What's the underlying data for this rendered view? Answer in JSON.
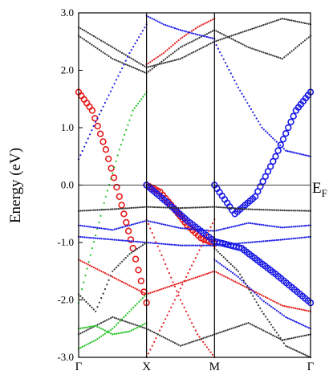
{
  "chart_data": {
    "type": "scatter",
    "ylabel": "Energy (eV)",
    "ylim": [
      -3.0,
      3.0
    ],
    "yticks": [
      "3.0",
      "2.0",
      "1.0",
      "0.0",
      "-1.0",
      "-2.0",
      "-3.0"
    ],
    "ytick_values": [
      3.0,
      2.0,
      1.0,
      0.0,
      -1.0,
      -2.0,
      -3.0
    ],
    "kpath": [
      "Γ",
      "X",
      "M",
      "Γ"
    ],
    "kpath_positions": [
      0.0,
      1.0,
      2.0,
      3.4142
    ],
    "fermi_label": "E",
    "fermi_label_sub": "F",
    "fermi_level": 0.0,
    "grid": false,
    "colors": {
      "black": "#333333",
      "blue": "#1a1ae6",
      "red": "#e61a1a",
      "green": "#22c022"
    },
    "series": [
      {
        "color": "red",
        "marker": "large",
        "x": [
          0.0,
          0.2,
          0.4,
          0.6,
          0.8,
          1.0
        ],
        "y": [
          1.62,
          1.3,
          0.62,
          -0.2,
          -1.1,
          -2.05
        ]
      },
      {
        "color": "red",
        "marker": "large",
        "x": [
          1.0,
          1.2,
          1.4,
          1.6,
          1.8,
          2.0
        ],
        "y": [
          0.0,
          -0.12,
          -0.4,
          -0.7,
          -0.92,
          -1.02
        ]
      },
      {
        "color": "blue",
        "marker": "large",
        "x": [
          2.0,
          2.3,
          2.6,
          2.9,
          3.2,
          3.4142
        ],
        "y": [
          0.0,
          -0.5,
          -0.2,
          0.5,
          1.3,
          1.62
        ]
      },
      {
        "color": "blue",
        "marker": "large",
        "x": [
          1.0,
          1.3,
          1.6,
          2.0,
          2.4,
          2.9,
          3.4142
        ],
        "y": [
          0.0,
          -0.3,
          -0.62,
          -0.98,
          -1.1,
          -1.55,
          -2.05
        ]
      },
      {
        "color": "green",
        "marker": "small",
        "x": [
          0.0,
          0.2,
          0.4,
          0.6,
          0.8,
          1.0
        ],
        "y": [
          -2.05,
          -1.1,
          -0.2,
          0.62,
          1.3,
          1.62
        ]
      },
      {
        "color": "black",
        "marker": "small",
        "x": [
          0.0,
          0.5,
          1.0,
          1.5,
          2.0,
          2.5,
          3.0,
          3.4142
        ],
        "y": [
          -0.45,
          -0.42,
          -0.38,
          -0.4,
          -0.38,
          -0.42,
          -0.44,
          -0.45
        ]
      },
      {
        "color": "blue",
        "marker": "small",
        "x": [
          0.0,
          0.5,
          1.0,
          1.5,
          2.0,
          2.5,
          3.0,
          3.4142
        ],
        "y": [
          -0.7,
          -0.78,
          -0.62,
          -0.75,
          -0.8,
          -0.66,
          -0.74,
          -0.7
        ]
      },
      {
        "color": "blue",
        "marker": "small",
        "x": [
          0.0,
          0.5,
          1.0,
          1.5,
          2.0,
          2.5,
          3.0,
          3.4142
        ],
        "y": [
          -0.9,
          -0.95,
          -1.0,
          -1.05,
          -1.05,
          -1.0,
          -0.95,
          -0.9
        ]
      },
      {
        "color": "black",
        "marker": "small",
        "x": [
          0.0,
          0.5,
          1.0,
          1.5,
          2.0,
          2.5,
          3.0,
          3.4142
        ],
        "y": [
          2.75,
          2.4,
          2.05,
          2.2,
          2.5,
          2.7,
          2.9,
          2.8
        ]
      },
      {
        "color": "black",
        "marker": "small",
        "x": [
          0.0,
          0.5,
          1.0,
          1.5,
          2.0,
          2.5,
          3.0,
          3.4142
        ],
        "y": [
          2.6,
          2.2,
          1.95,
          2.4,
          2.7,
          2.4,
          2.2,
          2.6
        ]
      },
      {
        "color": "red",
        "marker": "small",
        "x": [
          1.0,
          1.25,
          1.5,
          1.75,
          2.0
        ],
        "y": [
          2.1,
          2.3,
          2.55,
          2.75,
          2.9
        ]
      },
      {
        "color": "blue",
        "marker": "small",
        "x": [
          0.0,
          0.25,
          0.5,
          0.75,
          1.0
        ],
        "y": [
          0.45,
          1.1,
          1.7,
          2.3,
          2.8
        ]
      },
      {
        "color": "blue",
        "marker": "small",
        "x": [
          2.0,
          2.35,
          2.7,
          3.05,
          3.4142
        ],
        "y": [
          2.5,
          1.7,
          1.0,
          0.6,
          0.5
        ]
      },
      {
        "color": "blue",
        "marker": "small",
        "x": [
          1.0,
          1.25,
          1.5,
          1.75,
          2.0
        ],
        "y": [
          2.95,
          2.8,
          2.7,
          2.62,
          2.55
        ]
      },
      {
        "color": "red",
        "marker": "small",
        "x": [
          0.0,
          0.5,
          1.0,
          1.5,
          2.0,
          2.5,
          3.0,
          3.4142
        ],
        "y": [
          -1.3,
          -1.6,
          -1.9,
          -1.7,
          -1.5,
          -1.8,
          -2.1,
          -2.2
        ]
      },
      {
        "color": "red",
        "marker": "small",
        "x": [
          1.0,
          1.25,
          1.5,
          1.75,
          2.0
        ],
        "y": [
          -0.6,
          -1.3,
          -2.0,
          -2.6,
          -3.0
        ]
      },
      {
        "color": "red",
        "marker": "small",
        "x": [
          1.0,
          1.25,
          1.5,
          1.75,
          2.0
        ],
        "y": [
          -3.0,
          -2.4,
          -1.8,
          -1.2,
          -0.6
        ]
      },
      {
        "color": "black",
        "marker": "small",
        "x": [
          0.0,
          0.5,
          1.0,
          1.5,
          2.0,
          2.5,
          3.0,
          3.4142
        ],
        "y": [
          -2.6,
          -2.3,
          -2.5,
          -2.8,
          -2.6,
          -2.4,
          -2.7,
          -2.6
        ]
      },
      {
        "color": "green",
        "marker": "small",
        "x": [
          0.0,
          0.25,
          0.5,
          0.75,
          1.0
        ],
        "y": [
          -2.5,
          -2.45,
          -2.6,
          -2.55,
          -2.4
        ]
      },
      {
        "color": "green",
        "marker": "small",
        "x": [
          0.0,
          0.25,
          0.5,
          0.75,
          1.0
        ],
        "y": [
          -2.85,
          -2.7,
          -2.5,
          -2.2,
          -1.9
        ]
      },
      {
        "color": "blue",
        "marker": "small",
        "x": [
          2.0,
          2.35,
          2.7,
          3.05,
          3.4142
        ],
        "y": [
          -1.3,
          -1.6,
          -2.0,
          -2.3,
          -2.5
        ]
      },
      {
        "color": "black",
        "marker": "small",
        "x": [
          0.0,
          0.25,
          0.5,
          0.75,
          1.0
        ],
        "y": [
          -1.9,
          -2.2,
          -1.5,
          -1.2,
          -1.0
        ]
      },
      {
        "color": "black",
        "marker": "small",
        "x": [
          2.0,
          2.35,
          2.7,
          3.05,
          3.4142
        ],
        "y": [
          -1.1,
          -1.5,
          -2.2,
          -2.8,
          -3.0
        ]
      }
    ]
  }
}
